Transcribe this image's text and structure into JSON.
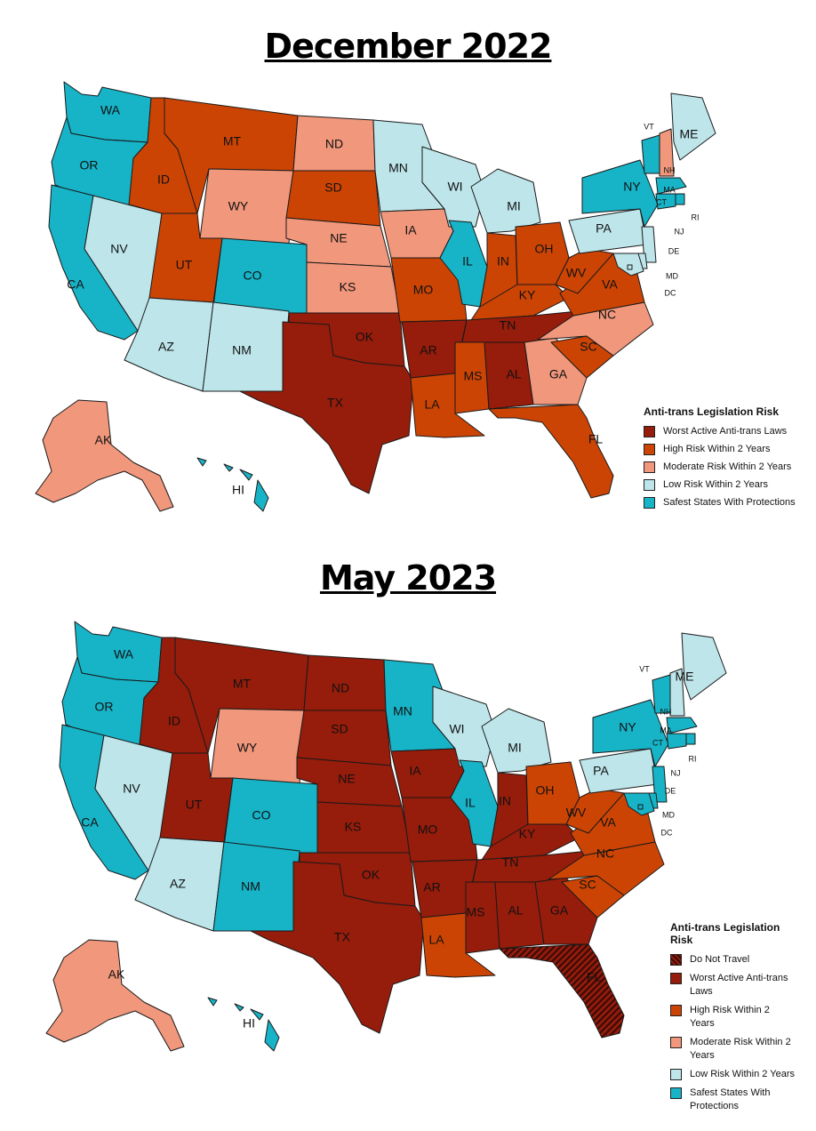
{
  "colors": {
    "worst": "#961c0b",
    "high": "#cc4404",
    "moderate": "#f0977c",
    "low": "#bde5ea",
    "safe": "#17b3c7",
    "dnt": "#3a0a06"
  },
  "maps": [
    {
      "title": "December 2022",
      "legend": {
        "title": "Anti-trans Legislation Risk",
        "items": [
          {
            "key": "worst",
            "label": "Worst Active Anti-trans Laws"
          },
          {
            "key": "high",
            "label": "High Risk Within 2 Years"
          },
          {
            "key": "moderate",
            "label": "Moderate Risk Within 2 Years"
          },
          {
            "key": "low",
            "label": "Low Risk Within 2 Years"
          },
          {
            "key": "safe",
            "label": "Safest States With Protections"
          }
        ]
      },
      "states": {
        "WA": "safe",
        "OR": "safe",
        "CA": "safe",
        "NV": "low",
        "ID": "high",
        "MT": "high",
        "WY": "moderate",
        "UT": "high",
        "CO": "safe",
        "AZ": "low",
        "NM": "low",
        "ND": "moderate",
        "SD": "high",
        "NE": "moderate",
        "KS": "moderate",
        "OK": "worst",
        "TX": "worst",
        "MN": "low",
        "IA": "moderate",
        "MO": "high",
        "AR": "worst",
        "LA": "high",
        "WI": "low",
        "IL": "safe",
        "MI": "low",
        "IN": "high",
        "OH": "high",
        "KY": "high",
        "TN": "worst",
        "MS": "high",
        "AL": "worst",
        "GA": "moderate",
        "FL": "high",
        "SC": "high",
        "NC": "moderate",
        "VA": "high",
        "WV": "high",
        "PA": "low",
        "NY": "safe",
        "ME": "low",
        "VT": "safe",
        "NH": "moderate",
        "MA": "safe",
        "CT": "safe",
        "RI": "safe",
        "NJ": "low",
        "DE": "low",
        "MD": "low",
        "DC": "low",
        "AK": "moderate",
        "HI": "safe"
      }
    },
    {
      "title": "May 2023",
      "legend": {
        "title": "Anti-trans Legislation Risk",
        "items": [
          {
            "key": "dnt",
            "label": "Do Not Travel"
          },
          {
            "key": "worst",
            "label": "Worst Active Anti-trans Laws"
          },
          {
            "key": "high",
            "label": "High Risk Within 2 Years"
          },
          {
            "key": "moderate",
            "label": "Moderate Risk Within 2 Years"
          },
          {
            "key": "low",
            "label": "Low Risk Within 2 Years"
          },
          {
            "key": "safe",
            "label": "Safest States With Protections"
          }
        ]
      },
      "states": {
        "WA": "safe",
        "OR": "safe",
        "CA": "safe",
        "NV": "low",
        "ID": "worst",
        "MT": "worst",
        "WY": "moderate",
        "UT": "worst",
        "CO": "safe",
        "AZ": "low",
        "NM": "safe",
        "ND": "worst",
        "SD": "worst",
        "NE": "worst",
        "KS": "worst",
        "OK": "worst",
        "TX": "worst",
        "MN": "safe",
        "IA": "worst",
        "MO": "worst",
        "AR": "worst",
        "LA": "high",
        "WI": "low",
        "IL": "safe",
        "MI": "low",
        "IN": "worst",
        "OH": "high",
        "KY": "worst",
        "TN": "worst",
        "MS": "worst",
        "AL": "worst",
        "GA": "worst",
        "FL": "dnt",
        "SC": "high",
        "NC": "high",
        "VA": "high",
        "WV": "high",
        "PA": "low",
        "NY": "safe",
        "ME": "low",
        "VT": "safe",
        "NH": "low",
        "MA": "safe",
        "CT": "safe",
        "RI": "safe",
        "NJ": "safe",
        "DE": "safe",
        "MD": "safe",
        "DC": "safe",
        "AK": "moderate",
        "HI": "safe"
      }
    }
  ]
}
